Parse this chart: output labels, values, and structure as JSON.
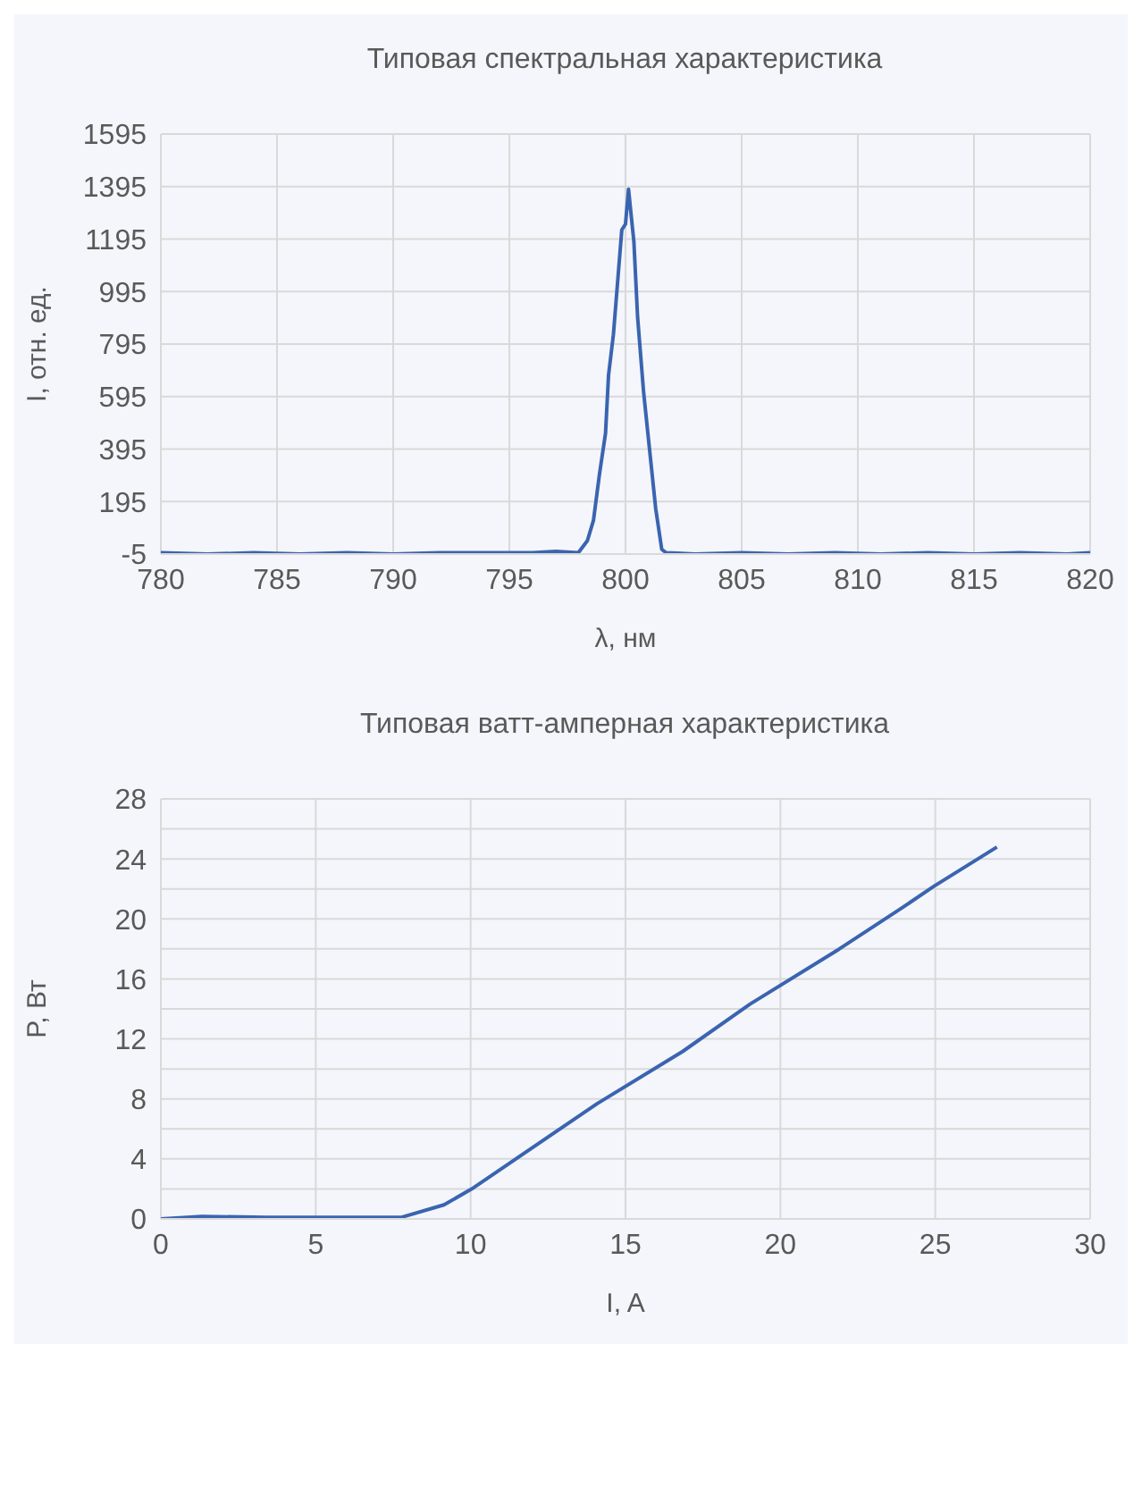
{
  "chart_data": [
    {
      "type": "line",
      "title": "Типовая спектральная характеристика",
      "xlabel": "λ, нм",
      "ylabel": "I, отн. ед.",
      "xlim": [
        780,
        820
      ],
      "xticks": [
        780,
        785,
        790,
        795,
        800,
        805,
        810,
        815,
        820
      ],
      "ylim": [
        -5,
        1595
      ],
      "yticks": [
        -5,
        195,
        395,
        595,
        795,
        995,
        1195,
        1395,
        1595
      ],
      "grid": true,
      "series": [
        {
          "color": "#3a64b0",
          "x": [
            780,
            782,
            784,
            786,
            788,
            790,
            792,
            794,
            796,
            797,
            797.97,
            798.36,
            798.62,
            798.88,
            799.14,
            799.27,
            799.48,
            799.66,
            799.84,
            800.0,
            800.13,
            800.23,
            800.36,
            800.52,
            800.78,
            801.04,
            801.3,
            801.56,
            801.75,
            803,
            805,
            807,
            809,
            811,
            813,
            815,
            817,
            819,
            820
          ],
          "values": [
            0,
            -5,
            0,
            -5,
            0,
            -5,
            0,
            0,
            0,
            5,
            0,
            46,
            123,
            300,
            455,
            677,
            832,
            1031,
            1230,
            1252,
            1385,
            1297,
            1186,
            898,
            611,
            389,
            168,
            13,
            0,
            -5,
            0,
            -5,
            0,
            -5,
            0,
            -5,
            0,
            -5,
            0
          ]
        }
      ]
    },
    {
      "type": "line",
      "title": "Типовая ватт-амперная характеристика",
      "xlabel": "I, A",
      "ylabel": "P, Вт",
      "xlim": [
        0,
        30
      ],
      "xticks": [
        0,
        5,
        10,
        15,
        20,
        25,
        30
      ],
      "ylim": [
        0,
        28
      ],
      "yticks": [
        0,
        {
          "value": 2,
          "label": null
        },
        4,
        {
          "value": 6,
          "label": null
        },
        8,
        {
          "value": 10,
          "label": null
        },
        12,
        {
          "value": 14,
          "label": null
        },
        16,
        {
          "value": 18,
          "label": null
        },
        20,
        {
          "value": 22,
          "label": null
        },
        24,
        {
          "value": 26,
          "label": null
        },
        28
      ],
      "grid": true,
      "series": [
        {
          "color": "#3a64b0",
          "x": [
            0,
            1.32,
            3.4,
            7.75,
            9.14,
            10.03,
            14.08,
            16.85,
            19.02,
            21.89,
            23.96,
            24.95,
            26.99
          ],
          "values": [
            0,
            0.17,
            0.1,
            0.1,
            0.94,
            1.99,
            7.68,
            11.17,
            14.32,
            17.98,
            20.78,
            22.17,
            24.79
          ]
        }
      ]
    }
  ]
}
